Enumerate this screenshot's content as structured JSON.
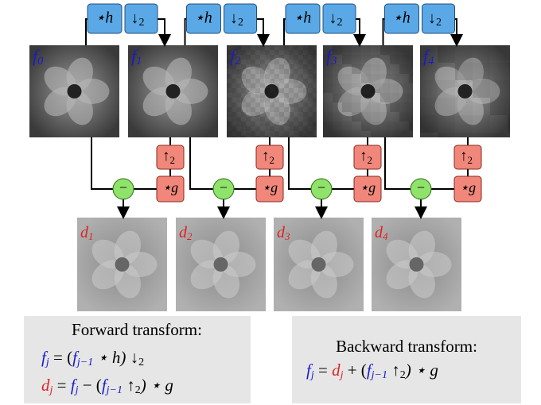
{
  "down_blocks": [
    {
      "filter": "⋆h",
      "op": "↓",
      "sub": "2"
    },
    {
      "filter": "⋆h",
      "op": "↓",
      "sub": "2"
    },
    {
      "filter": "⋆h",
      "op": "↓",
      "sub": "2"
    },
    {
      "filter": "⋆h",
      "op": "↓",
      "sub": "2"
    }
  ],
  "f_images": [
    {
      "label": "f",
      "sub": "0"
    },
    {
      "label": "f",
      "sub": "1"
    },
    {
      "label": "f",
      "sub": "2"
    },
    {
      "label": "f",
      "sub": "3"
    },
    {
      "label": "f",
      "sub": "4"
    }
  ],
  "up_blocks": [
    {
      "op": "↑",
      "sub": "2",
      "filter": "⋆g",
      "minus": "−"
    },
    {
      "op": "↑",
      "sub": "2",
      "filter": "⋆g",
      "minus": "−"
    },
    {
      "op": "↑",
      "sub": "2",
      "filter": "⋆g",
      "minus": "−"
    },
    {
      "op": "↑",
      "sub": "2",
      "filter": "⋆g",
      "minus": "−"
    }
  ],
  "d_images": [
    {
      "label": "d",
      "sub": "1"
    },
    {
      "label": "d",
      "sub": "2"
    },
    {
      "label": "d",
      "sub": "3"
    },
    {
      "label": "d",
      "sub": "4"
    }
  ],
  "forward": {
    "title": "Forward transform:",
    "formulas": [
      [
        {
          "t": "f",
          "c": "blue"
        },
        {
          "t": "j",
          "c": "blue",
          "sub": true
        },
        {
          "t": " = ("
        },
        {
          "t": "f",
          "c": "blue"
        },
        {
          "t": "j−1",
          "c": "blue",
          "sub": true
        },
        {
          "t": " ⋆ h) ↓"
        },
        {
          "t": "2",
          "sub": true
        }
      ],
      [
        {
          "t": "d",
          "c": "red"
        },
        {
          "t": "j",
          "c": "red",
          "sub": true
        },
        {
          "t": " = "
        },
        {
          "t": "f",
          "c": "blue"
        },
        {
          "t": "j",
          "c": "blue",
          "sub": true
        },
        {
          "t": " − ("
        },
        {
          "t": "f",
          "c": "blue"
        },
        {
          "t": "j−1",
          "c": "blue",
          "sub": true
        },
        {
          "t": " ↑"
        },
        {
          "t": "2",
          "sub": true
        },
        {
          "t": ") ⋆ g"
        }
      ]
    ]
  },
  "backward": {
    "title": "Backward transform:",
    "formulas": [
      [
        {
          "t": "f",
          "c": "blue"
        },
        {
          "t": "j",
          "c": "blue",
          "sub": true
        },
        {
          "t": " = "
        },
        {
          "t": "d",
          "c": "red"
        },
        {
          "t": "j",
          "c": "red",
          "sub": true
        },
        {
          "t": " + ("
        },
        {
          "t": "f",
          "c": "blue"
        },
        {
          "t": "j−1",
          "c": "blue",
          "sub": true
        },
        {
          "t": " ↑"
        },
        {
          "t": "2",
          "sub": true
        },
        {
          "t": ") ⋆ g"
        }
      ]
    ]
  }
}
